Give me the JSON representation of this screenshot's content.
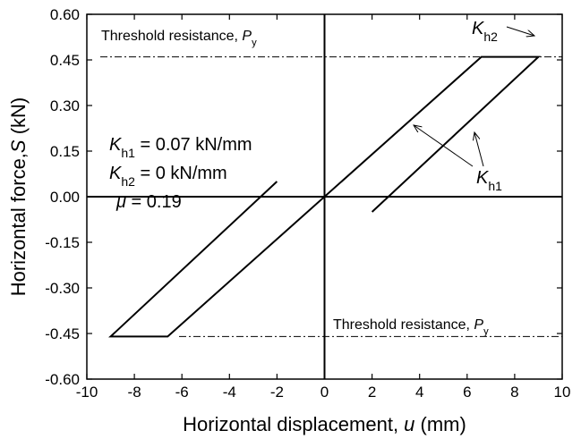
{
  "chart_data": {
    "type": "line",
    "xlabel": [
      "Horizontal displacement, ",
      "u",
      " (mm)"
    ],
    "ylabel": [
      "Horizontal force,",
      "S",
      " (kN)"
    ],
    "xlim": [
      -10,
      10
    ],
    "xticks": [
      -10,
      -8,
      -6,
      -4,
      -2,
      0,
      2,
      4,
      6,
      8,
      10
    ],
    "ylim": [
      -0.6,
      0.6
    ],
    "yticks": [
      {
        "value": -0.6,
        "label": "-0.60"
      },
      -0.45,
      {
        "value": -0.3,
        "label": "-0.30"
      },
      -0.15,
      {
        "value": 0,
        "label": "0.00"
      },
      0.15,
      {
        "value": 0.3,
        "label": "0.30"
      },
      0.45,
      {
        "value": 0.6,
        "label": "0.60"
      }
    ],
    "series": [
      {
        "name": "hysteresis",
        "color": "#000000",
        "x": [
          -2,
          -9,
          -6.6,
          6.6,
          9,
          2
        ],
        "values": [
          0.05,
          -0.46,
          -0.46,
          0.46,
          0.46,
          -0.05
        ]
      }
    ],
    "reference_lines": [
      0.46,
      -0.46
    ],
    "annotations": [
      [
        "Threshold resistance, ",
        "P",
        "y"
      ],
      [
        "Threshold resistance, ",
        "P",
        "y"
      ],
      [
        "K",
        "h1",
        " = 0.07 kN/mm"
      ],
      [
        "K",
        "h2",
        " = 0 kN/mm"
      ],
      [
        "μ",
        " = 0.19"
      ],
      [
        "K",
        "h2"
      ],
      [
        "K",
        "h1"
      ]
    ]
  }
}
